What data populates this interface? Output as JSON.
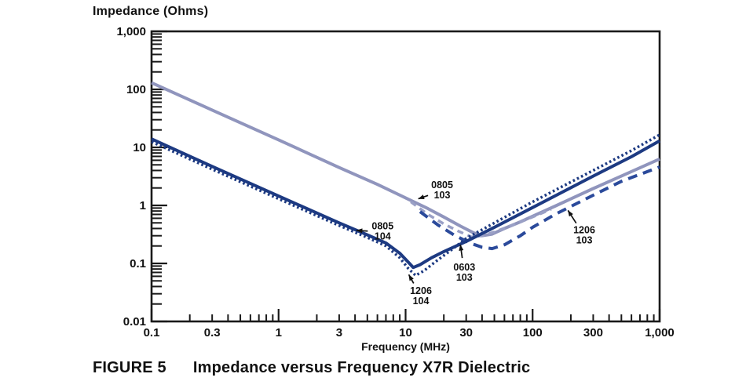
{
  "figure": {
    "y_axis_title": "Impedance (Ohms)",
    "x_axis_title": "Frequency (MHz)",
    "caption_label": "FIGURE 5",
    "caption_text": "Impedance versus Frequency X7R Dielectric"
  },
  "colors": {
    "axis": "#1a1a1a",
    "text": "#111111",
    "navy": "#1d3a82",
    "navy_dash": "#2b4a9b",
    "purple": "#9095bd",
    "purple_dash": "#9aa0c6"
  },
  "chart_data": {
    "type": "line",
    "title": "Impedance versus Frequency X7R Dielectric",
    "xlabel": "Frequency (MHz)",
    "ylabel": "Impedance (Ohms)",
    "x_scale": "log",
    "y_scale": "log",
    "xlim": [
      0.1,
      1000
    ],
    "ylim": [
      0.01,
      1000
    ],
    "grid": false,
    "legend_position": "none (curves annotated inline with arrows)",
    "x_ticks": [
      {
        "value": 0.1,
        "label": "0.1"
      },
      {
        "value": 0.3,
        "label": "0.3"
      },
      {
        "value": 1,
        "label": "1"
      },
      {
        "value": 3,
        "label": "3"
      },
      {
        "value": 10,
        "label": "10"
      },
      {
        "value": 30,
        "label": "30"
      },
      {
        "value": 100,
        "label": "100"
      },
      {
        "value": 300,
        "label": "300"
      },
      {
        "value": 1000,
        "label": "1,000"
      }
    ],
    "y_ticks": [
      {
        "value": 1000,
        "label": "1,000"
      },
      {
        "value": 100,
        "label": "100"
      },
      {
        "value": 10,
        "label": "10"
      },
      {
        "value": 1,
        "label": "1"
      },
      {
        "value": 0.1,
        "label": "0.1"
      },
      {
        "value": 0.01,
        "label": "0.01"
      }
    ],
    "series": [
      {
        "name": "0805 103",
        "package": "0805",
        "value_code": "103",
        "style": "solid",
        "color": "#9095bd",
        "points": [
          [
            0.1,
            130
          ],
          [
            0.3,
            44
          ],
          [
            1,
            13.5
          ],
          [
            3,
            4.5
          ],
          [
            6,
            2.3
          ],
          [
            10,
            1.35
          ],
          [
            15,
            0.88
          ],
          [
            20,
            0.63
          ],
          [
            27,
            0.44
          ],
          [
            34,
            0.34
          ],
          [
            40,
            0.3
          ],
          [
            48,
            0.32
          ],
          [
            60,
            0.4
          ],
          [
            80,
            0.52
          ],
          [
            100,
            0.65
          ],
          [
            150,
            0.97
          ],
          [
            300,
            1.95
          ],
          [
            500,
            3.2
          ],
          [
            1000,
            6.3
          ]
        ]
      },
      {
        "name": "0603 103",
        "package": "0603",
        "value_code": "103",
        "style": "dashed-short",
        "color": "#9aa0c6",
        "points": [
          [
            11,
            1.15
          ],
          [
            15,
            0.7
          ],
          [
            20,
            0.48
          ],
          [
            26,
            0.36
          ],
          [
            33,
            0.285
          ],
          [
            40,
            0.3
          ],
          [
            50,
            0.35
          ],
          [
            70,
            0.46
          ],
          [
            100,
            0.63
          ],
          [
            140,
            0.86
          ]
        ]
      },
      {
        "name": "1206 103",
        "package": "1206",
        "value_code": "103",
        "style": "dashed",
        "color": "#2b4a9b",
        "points": [
          [
            13,
            0.78
          ],
          [
            18,
            0.46
          ],
          [
            24,
            0.31
          ],
          [
            32,
            0.225
          ],
          [
            40,
            0.19
          ],
          [
            48,
            0.18
          ],
          [
            60,
            0.21
          ],
          [
            80,
            0.3
          ],
          [
            100,
            0.42
          ],
          [
            150,
            0.7
          ],
          [
            300,
            1.5
          ],
          [
            500,
            2.6
          ],
          [
            1000,
            4.6
          ]
        ]
      },
      {
        "name": "0805 104",
        "package": "0805",
        "value_code": "104",
        "style": "solid",
        "color": "#1d3a82",
        "points": [
          [
            0.1,
            14
          ],
          [
            0.3,
            4.7
          ],
          [
            1,
            1.45
          ],
          [
            3,
            0.5
          ],
          [
            5,
            0.31
          ],
          [
            7,
            0.225
          ],
          [
            9,
            0.15
          ],
          [
            10.5,
            0.105
          ],
          [
            11.5,
            0.085
          ],
          [
            13,
            0.095
          ],
          [
            16,
            0.125
          ],
          [
            20,
            0.16
          ],
          [
            30,
            0.24
          ],
          [
            50,
            0.42
          ],
          [
            100,
            0.92
          ],
          [
            300,
            3.2
          ],
          [
            600,
            6.9
          ],
          [
            1000,
            13
          ]
        ]
      },
      {
        "name": "1206 104",
        "package": "1206",
        "value_code": "104",
        "style": "dotted",
        "color": "#1d3a82",
        "points": [
          [
            0.1,
            12.5
          ],
          [
            0.3,
            4.2
          ],
          [
            1,
            1.3
          ],
          [
            3,
            0.45
          ],
          [
            5,
            0.28
          ],
          [
            7,
            0.2
          ],
          [
            9,
            0.125
          ],
          [
            10.5,
            0.082
          ],
          [
            12,
            0.062
          ],
          [
            14,
            0.075
          ],
          [
            17,
            0.105
          ],
          [
            22,
            0.16
          ],
          [
            30,
            0.27
          ],
          [
            50,
            0.5
          ],
          [
            100,
            1.15
          ],
          [
            300,
            4.0
          ],
          [
            600,
            8.8
          ],
          [
            1000,
            16.5
          ]
        ]
      }
    ],
    "annotations": [
      {
        "lines": [
          "0805",
          "103"
        ],
        "text_at": [
          19.4,
          1.8
        ],
        "target": [
          12.6,
          1.3
        ]
      },
      {
        "lines": [
          "0805",
          "104"
        ],
        "text_at": [
          6.6,
          0.35
        ],
        "target": [
          4.1,
          0.37
        ]
      },
      {
        "lines": [
          "1206",
          "104"
        ],
        "text_at": [
          13.2,
          0.027
        ],
        "target": [
          10.6,
          0.064
        ]
      },
      {
        "lines": [
          "0603",
          "103"
        ],
        "text_at": [
          29,
          0.069
        ],
        "target": [
          27,
          0.21
        ]
      },
      {
        "lines": [
          "1206",
          "103"
        ],
        "text_at": [
          255,
          0.3
        ],
        "target": [
          190,
          0.82
        ]
      }
    ]
  }
}
